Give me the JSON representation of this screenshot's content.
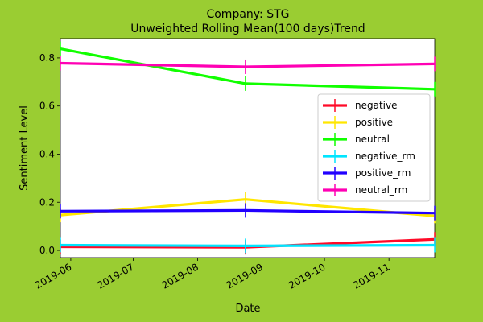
{
  "chart_data": {
    "type": "line",
    "title_line1": "Company: STG",
    "title_line2": "Unweighted Rolling Mean(100 days)Trend",
    "xlabel": "Date",
    "ylabel": "Sentiment Level",
    "xlim": [
      "2019-05-27",
      "2019-11-23"
    ],
    "ylim": [
      -0.03,
      0.88
    ],
    "x_ticks": [
      {
        "date": "2019-06-01",
        "label": "2019-06"
      },
      {
        "date": "2019-07-01",
        "label": "2019-07"
      },
      {
        "date": "2019-08-01",
        "label": "2019-08"
      },
      {
        "date": "2019-09-01",
        "label": "2019-09"
      },
      {
        "date": "2019-10-01",
        "label": "2019-10"
      },
      {
        "date": "2019-11-01",
        "label": "2019-11"
      }
    ],
    "y_ticks": [
      {
        "value": 0.0,
        "label": "0.0"
      },
      {
        "value": 0.2,
        "label": "0.2"
      },
      {
        "value": 0.4,
        "label": "0.4"
      },
      {
        "value": 0.6,
        "label": "0.6"
      },
      {
        "value": 0.8,
        "label": "0.8"
      }
    ],
    "x": [
      "2019-05-27",
      "2019-08-24",
      "2019-11-23"
    ],
    "series": [
      {
        "name": "negative",
        "color": "#ff0a28",
        "values": [
          0.015,
          0.013,
          0.046
        ]
      },
      {
        "name": "positive",
        "color": "#ffe600",
        "values": [
          0.147,
          0.212,
          0.143
        ]
      },
      {
        "name": "neutral",
        "color": "#11ff00",
        "values": [
          0.838,
          0.693,
          0.67
        ]
      },
      {
        "name": "negative_rm",
        "color": "#00e5ff",
        "values": [
          0.022,
          0.019,
          0.022
        ]
      },
      {
        "name": "positive_rm",
        "color": "#2200ff",
        "values": [
          0.163,
          0.166,
          0.155
        ]
      },
      {
        "name": "neutral_rm",
        "color": "#ff00b4",
        "values": [
          0.778,
          0.763,
          0.775
        ]
      }
    ],
    "legend_position": "center-right",
    "grid": false
  }
}
